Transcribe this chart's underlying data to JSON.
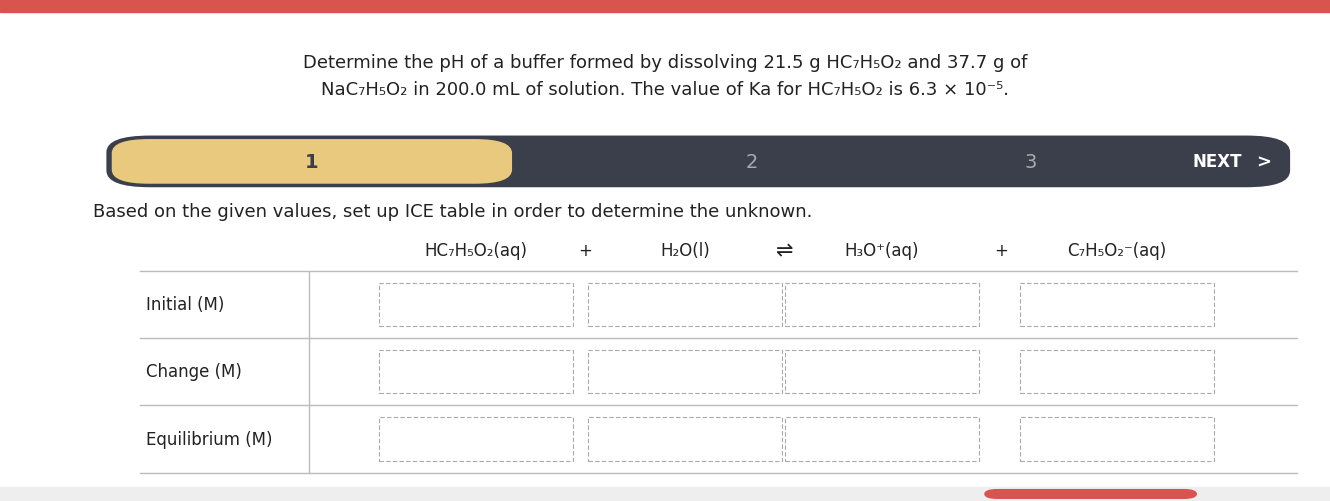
{
  "top_bar_color": "#d9534f",
  "bg_color": "#ffffff",
  "bottom_bar_color": "#eeeeee",
  "title_text_line1": "Determine the pH of a buffer formed by dissolving 21.5 g HC₇H₅O₂ and 37.7 g of",
  "title_text_line2": "NaC₇H₅O₂ in 200.0 mL of solution. The value of Ka for HC₇H₅O₂ is 6.3 × 10⁻⁵.",
  "title_fontsize": 13,
  "nav_bar": {
    "bg_color": "#3a3f4b",
    "step1_color": "#e8c97e",
    "step1_text": "1",
    "step2_text": "2",
    "step3_text": "3",
    "next_text": "NEXT",
    "next_arrow": ">",
    "text_color_dark": "#3a3f4b",
    "text_color_light": "#aaaaaa",
    "text_color_white": "#ffffff"
  },
  "instruction_text": "Based on the given values, set up ICE table in order to determine the unknown.",
  "instruction_fontsize": 13,
  "equation": {
    "col1": "HC₇H₅O₂(aq)",
    "plus1": "+",
    "col2": "H₂O(l)",
    "arrow": "⇌",
    "col3": "H₃O⁺(aq)",
    "plus2": "+",
    "col4": "C₇H₅O₂⁻(aq)"
  },
  "row_labels": [
    "Initial (M)",
    "Change (M)",
    "Equilibrium (M)"
  ],
  "input_box_border": "#aaaaaa",
  "line_color": "#bbbbbb",
  "eq_fontsize": 12,
  "row_label_fontsize": 12
}
